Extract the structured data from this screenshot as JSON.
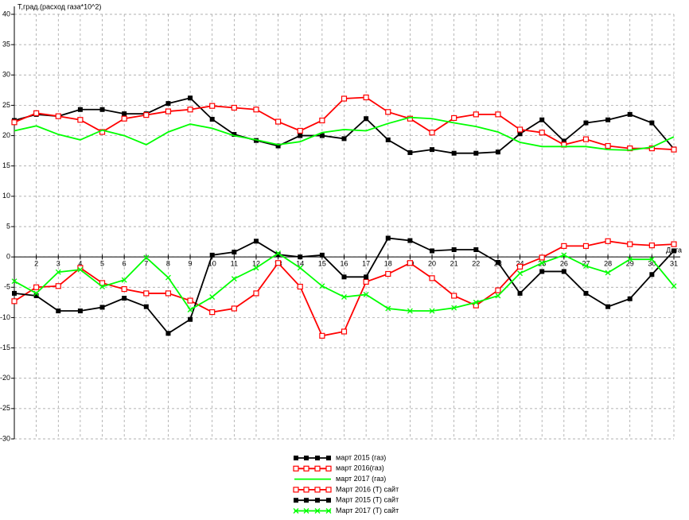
{
  "chart_data": {
    "type": "line",
    "y_label": "Т,град.(расход газа*10^2)",
    "x_label": "Дата",
    "x": [
      1,
      2,
      3,
      4,
      5,
      6,
      7,
      8,
      9,
      10,
      11,
      12,
      13,
      14,
      15,
      16,
      17,
      18,
      19,
      20,
      21,
      22,
      23,
      24,
      25,
      26,
      27,
      28,
      29,
      30,
      31
    ],
    "xlim": [
      1,
      31
    ],
    "xticks": [
      2,
      3,
      4,
      5,
      6,
      7,
      8,
      9,
      10,
      11,
      12,
      13,
      14,
      15,
      16,
      17,
      18,
      19,
      20,
      21,
      22,
      23,
      24,
      25,
      26,
      27,
      28,
      29,
      30,
      31
    ],
    "ylim": [
      -30,
      40
    ],
    "yticks": [
      40,
      35,
      30,
      25,
      20,
      15,
      10,
      5,
      0,
      -5,
      -10,
      -15,
      -20,
      -25,
      -30
    ],
    "grid": true,
    "series": [
      {
        "name": "март 2015 (газ)",
        "color": "#000000",
        "marker": "filled-square",
        "values": [
          22.5,
          23.5,
          23.2,
          24.3,
          24.3,
          23.6,
          23.6,
          25.3,
          26.2,
          22.7,
          20.2,
          19.2,
          18.3,
          20,
          20,
          19.5,
          22.8,
          19.3,
          17.2,
          17.7,
          17.1,
          17.1,
          17.3,
          20.3,
          22.6,
          19.1,
          22.1,
          22.6,
          23.5,
          22.1,
          17.8
        ]
      },
      {
        "name": "март 2016(газ)",
        "color": "#ff0000",
        "marker": "square",
        "values": [
          22.2,
          23.7,
          23.2,
          22.6,
          20.6,
          22.8,
          23.4,
          24,
          24.3,
          24.9,
          24.6,
          24.3,
          22.3,
          20.8,
          22.5,
          26.1,
          26.3,
          23.9,
          22.8,
          20.5,
          22.9,
          23.5,
          23.5,
          21,
          20.5,
          18.5,
          19.4,
          18.3,
          17.9,
          17.9,
          17.7
        ]
      },
      {
        "name": "март 2017 (газ)",
        "color": "#00ff00",
        "marker": "none",
        "values": [
          20.8,
          21.6,
          20.2,
          19.3,
          20.9,
          20,
          18.5,
          20.6,
          21.9,
          21.2,
          20,
          19.3,
          18.5,
          19,
          20.5,
          21,
          20.8,
          22,
          23,
          22.8,
          22.1,
          21.5,
          20.6,
          18.9,
          18.2,
          18.2,
          18.2,
          17.7,
          17.6,
          18.1,
          19.8
        ]
      },
      {
        "name": "Март 2016 (Т) сайт",
        "color": "#ff0000",
        "marker": "square",
        "values": [
          -7.3,
          -5,
          -4.8,
          -1.8,
          -4.3,
          -5.3,
          -6,
          -6,
          -7.2,
          -9.1,
          -8.5,
          -6,
          -1,
          -4.9,
          -13,
          -12.3,
          -4.1,
          -2.8,
          -1,
          -3.5,
          -6.4,
          -8,
          -5.5,
          -1.6,
          -0.1,
          1.8,
          1.8,
          2.6,
          2.1,
          1.9,
          2.1
        ]
      },
      {
        "name": "Март 2015 (Т) сайт",
        "color": "#000000",
        "marker": "filled-square",
        "values": [
          -6,
          -6.4,
          -8.9,
          -8.9,
          -8.3,
          -6.8,
          -8.2,
          -12.6,
          -10.3,
          0.3,
          0.8,
          2.6,
          0.4,
          0,
          0.3,
          -3.3,
          -3.3,
          3.1,
          2.7,
          1,
          1.2,
          1.2,
          -0.9,
          -6,
          -2.4,
          -2.4,
          -6,
          -8.2,
          -6.9,
          -2.9,
          1
        ]
      },
      {
        "name": "Март 2017 (Т) сайт",
        "color": "#00ff00",
        "marker": "x",
        "values": [
          -4,
          -6,
          -2.5,
          -2.1,
          -4.9,
          -3.8,
          -0.1,
          -3.4,
          -8.7,
          -6.6,
          -3.6,
          -1.8,
          0.6,
          -1.8,
          -4.8,
          -6.6,
          -6.2,
          -8.5,
          -8.9,
          -8.9,
          -8.4,
          -7.5,
          -6.4,
          -2.7,
          -1,
          0.3,
          -1.5,
          -2.6,
          -0.4,
          -0.4,
          -4.8
        ]
      }
    ]
  }
}
